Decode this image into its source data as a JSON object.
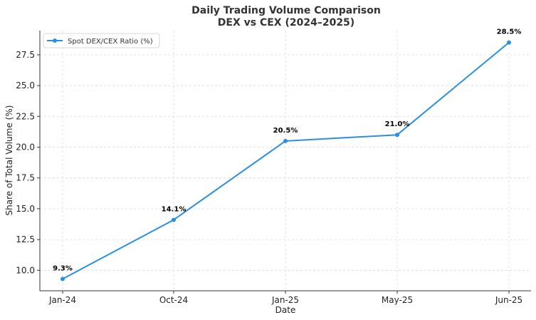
{
  "chart_data": {
    "type": "line",
    "title": "Daily Trading Volume Comparison",
    "subtitle": "DEX vs CEX (2024–2025)",
    "xlabel": "Date",
    "ylabel": "Share of Total Volume (%)",
    "categories": [
      "Jan-24",
      "Oct-24",
      "Jan-25",
      "May-25",
      "Jun-25"
    ],
    "series": [
      {
        "name": "Spot DEX/CEX Ratio (%)",
        "values": [
          9.3,
          14.1,
          20.5,
          21.0,
          28.5
        ],
        "labels": [
          "9.3%",
          "14.1%",
          "20.5%",
          "21.0%",
          "28.5%"
        ],
        "color": "#2b8fe0"
      }
    ],
    "yticks": [
      "10.0",
      "12.5",
      "15.0",
      "17.5",
      "20.0",
      "22.5",
      "25.0",
      "27.5"
    ],
    "ylim": [
      8.34,
      29.46
    ],
    "grid": true,
    "legend_position": "top-left"
  }
}
